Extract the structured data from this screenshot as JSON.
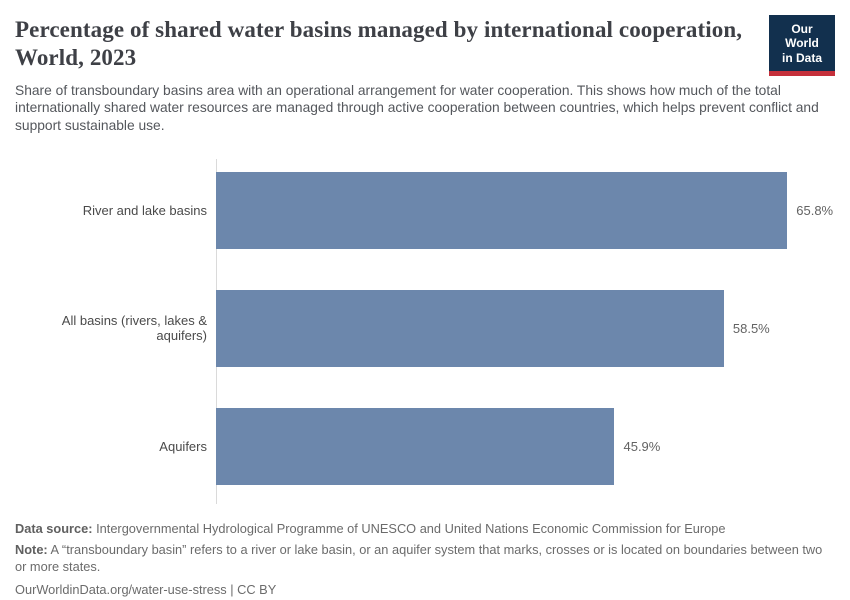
{
  "header": {
    "title": "Percentage of shared water basins managed by international cooperation, World, 2023",
    "subtitle": "Share of transboundary basins area with an operational arrangement for water cooperation. This shows how much of the total internationally shared water resources are managed through active cooperation between countries, which helps prevent conflict and support sustainable use.",
    "logo": {
      "line1": "Our World",
      "line2": "in Data",
      "bg_color": "#12304e",
      "accent_color": "#c5303b"
    }
  },
  "chart_data": {
    "type": "bar",
    "orientation": "horizontal",
    "title": "Percentage of shared water basins managed by international cooperation, World, 2023",
    "categories": [
      "River and lake basins",
      "All basins (rivers, lakes & aquifers)",
      "Aquifers"
    ],
    "values": [
      65.8,
      58.5,
      45.9
    ],
    "value_labels": [
      "65.8%",
      "58.5%",
      "45.9%"
    ],
    "unit": "%",
    "bar_color": "#6c87ac",
    "axis_color": "#dadada",
    "xlim": [
      0,
      71.3
    ],
    "grid": false,
    "legend": false
  },
  "footer": {
    "data_source_label": "Data source:",
    "data_source": " Intergovernmental Hydrological Programme of UNESCO and United Nations Economic Commission for Europe",
    "note_label": "Note:",
    "note": " A “transboundary basin” refers to a river or lake basin, or an aquifer system that marks, crosses or is located on boundaries between two or more states.",
    "link": "OurWorldinData.org/water-use-stress | CC BY"
  }
}
